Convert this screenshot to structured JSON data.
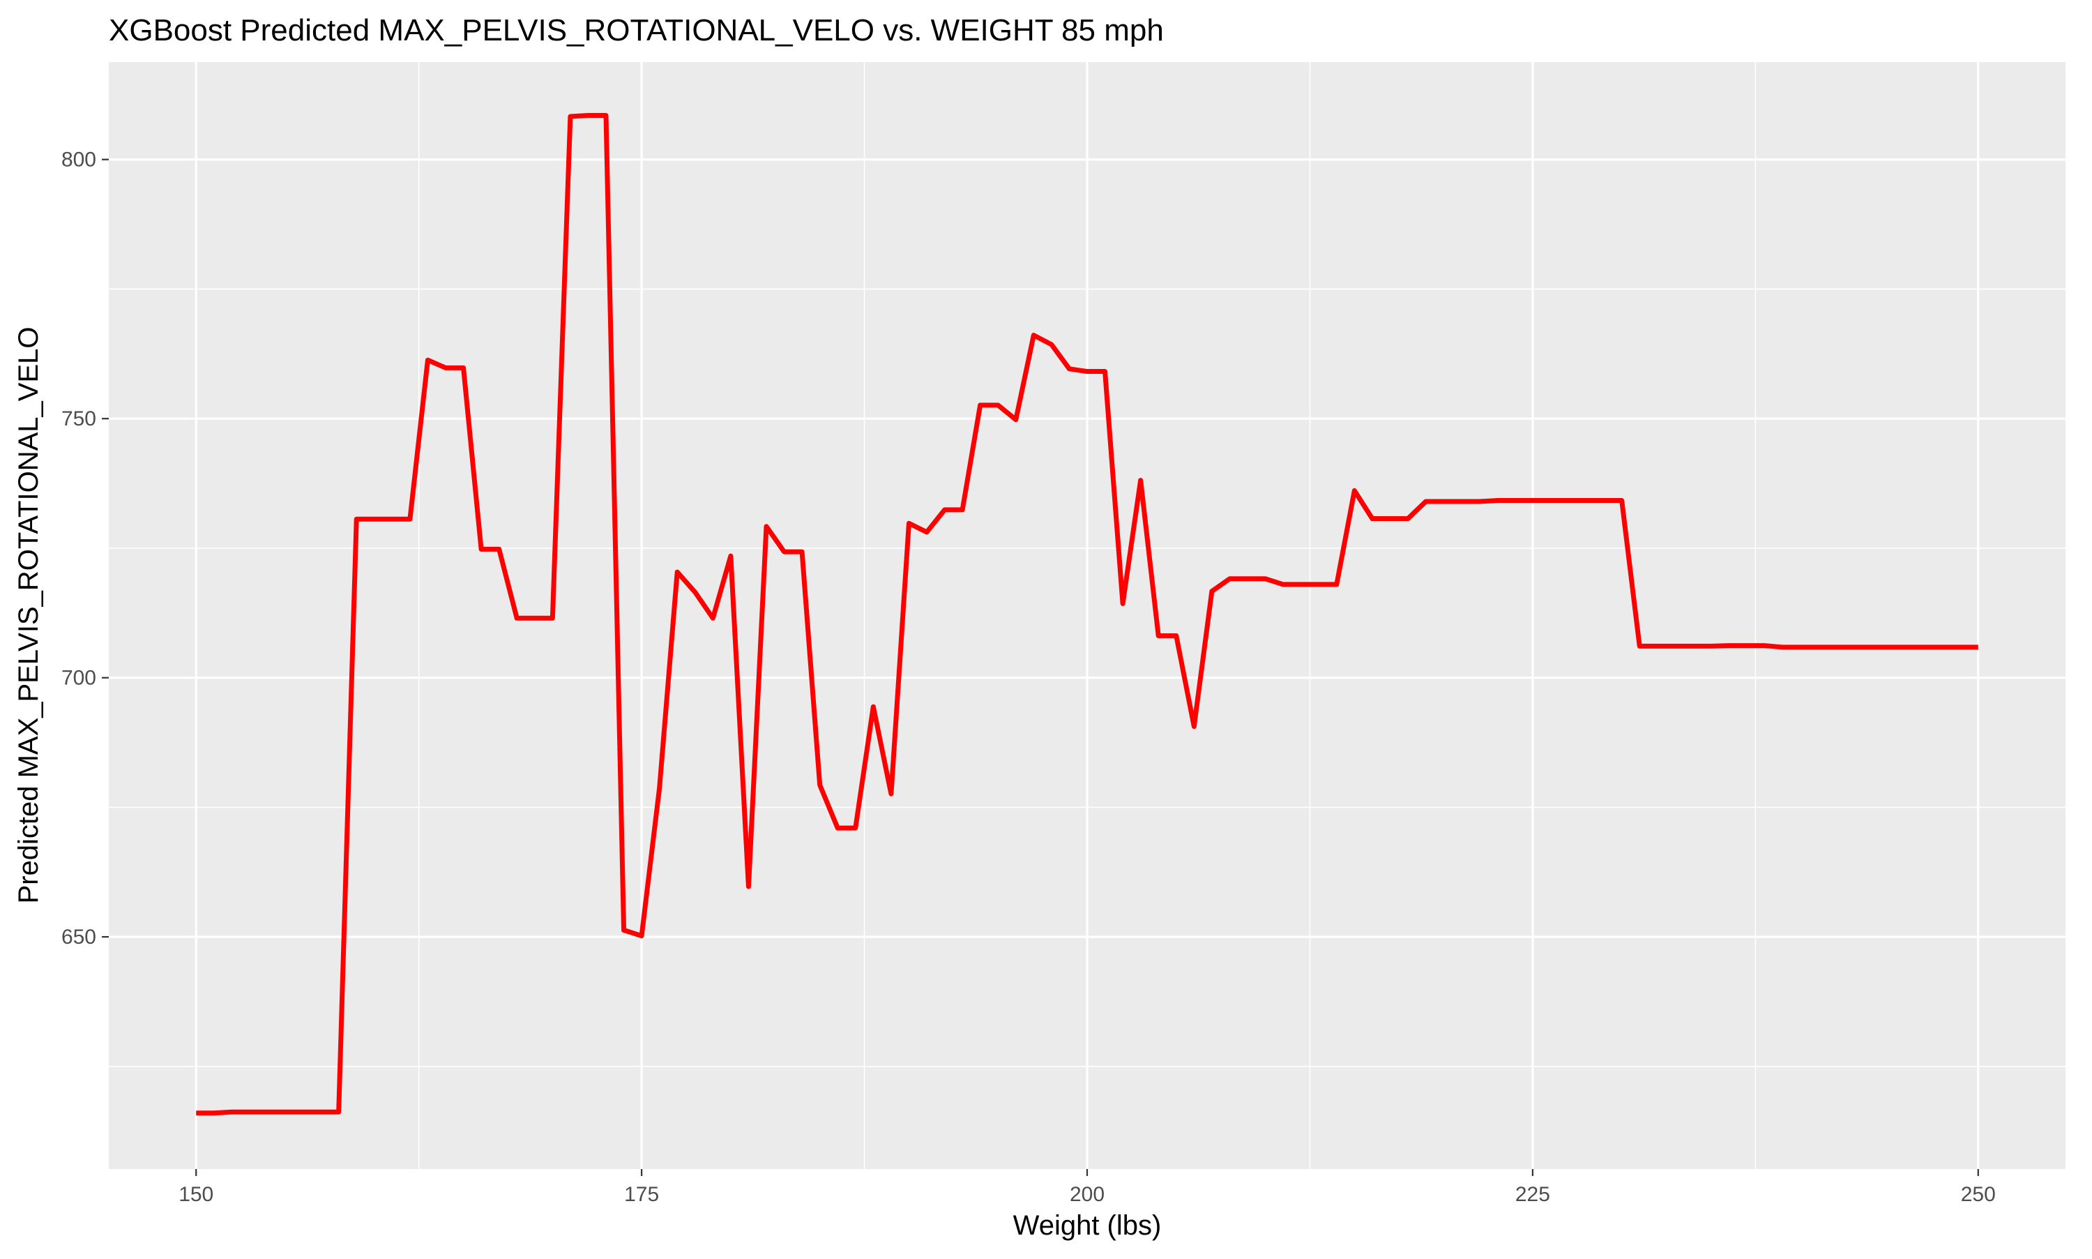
{
  "chart_data": {
    "type": "line",
    "title": "XGBoost Predicted MAX_PELVIS_ROTATIONAL_VELO vs. WEIGHT 85 mph",
    "xlabel": "Weight (lbs)",
    "ylabel": "Predicted MAX_PELVIS_ROTATIONAL_VELO",
    "xlim": [
      145.1,
      254.9
    ],
    "ylim": [
      605.2,
      818.8
    ],
    "x_ticks": [
      150,
      175,
      200,
      225,
      250
    ],
    "x_tick_labels": [
      "150",
      "175",
      "200",
      "225",
      "250"
    ],
    "y_ticks": [
      650,
      700,
      750,
      800
    ],
    "y_tick_labels": [
      "650",
      "700",
      "750",
      "800"
    ],
    "x_minor_ticks": [
      162.5,
      187.5,
      212.5,
      237.5
    ],
    "y_minor_ticks": [
      625,
      675,
      725,
      775
    ],
    "grid": true,
    "background": "gray",
    "legend": "none",
    "series": [
      {
        "color": "#ff0000",
        "x": [
          150,
          151,
          152,
          153,
          154,
          155,
          156,
          157,
          158,
          159,
          160,
          161,
          162,
          163,
          164,
          165,
          166,
          167,
          168,
          169,
          170,
          171,
          172,
          173,
          174,
          175,
          176,
          177,
          178,
          179,
          180,
          181,
          182,
          183,
          184,
          185,
          186,
          187,
          188,
          189,
          190,
          191,
          192,
          193,
          194,
          195,
          196,
          197,
          198,
          199,
          200,
          201,
          202,
          203,
          204,
          205,
          206,
          207,
          208,
          209,
          210,
          211,
          212,
          213,
          214,
          215,
          216,
          217,
          218,
          219,
          220,
          221,
          222,
          223,
          224,
          225,
          226,
          227,
          228,
          229,
          230,
          231,
          232,
          233,
          234,
          235,
          236,
          237,
          238,
          239,
          240,
          241,
          242,
          243,
          244,
          245,
          246,
          247,
          248,
          249,
          250
        ],
        "y": [
          616,
          616,
          616.2,
          616.2,
          616.2,
          616.2,
          616.2,
          616.2,
          616.2,
          730.6,
          730.6,
          730.6,
          730.6,
          761.3,
          759.8,
          759.8,
          724.8,
          724.8,
          711.5,
          711.5,
          711.5,
          808.3,
          808.5,
          808.5,
          651.3,
          650.2,
          678.7,
          720.4,
          716.5,
          711.5,
          723.5,
          659.7,
          729.2,
          724.3,
          724.3,
          679.3,
          671,
          671,
          694.4,
          677.6,
          729.8,
          728.1,
          732.4,
          732.4,
          752.6,
          752.6,
          749.8,
          766.1,
          764.3,
          759.6,
          759.1,
          759.1,
          714.3,
          738.1,
          708.1,
          708.1,
          690.6,
          716.7,
          719.1,
          719.1,
          719.1,
          718,
          718,
          718,
          718,
          736.1,
          730.7,
          730.7,
          730.7,
          734,
          734,
          734,
          734,
          734.2,
          734.2,
          734.2,
          734.2,
          734.2,
          734.2,
          734.2,
          734.2,
          706.1,
          706.1,
          706.1,
          706.1,
          706.1,
          706.2,
          706.2,
          706.2,
          705.9,
          705.9,
          705.9,
          705.9,
          705.9,
          705.9,
          705.9,
          705.9,
          705.9,
          705.9,
          705.9,
          705.9
        ]
      }
    ]
  }
}
